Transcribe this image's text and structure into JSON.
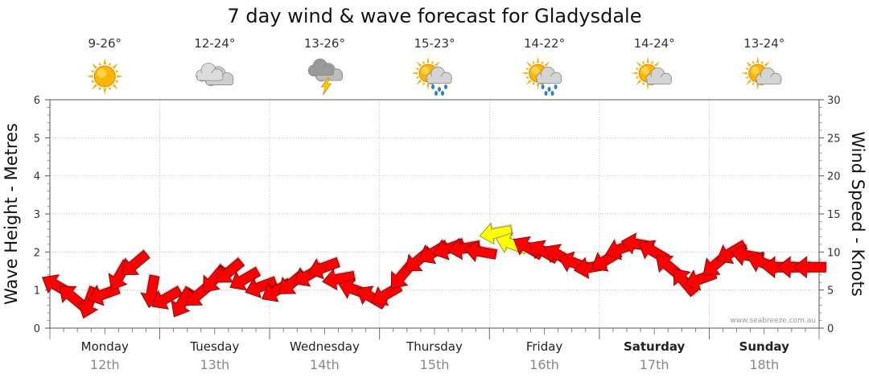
{
  "chart_data": {
    "type": "line",
    "title": "7 day wind & wave forecast for Gladysdale",
    "ylabel_left": "Wave Height - Metres",
    "ylabel_right": "Wind Speed - Knots",
    "ylim_left": [
      0,
      6
    ],
    "ylim_right": [
      0,
      30
    ],
    "yticks_left": [
      "0",
      "1",
      "2",
      "3",
      "4",
      "5",
      "6"
    ],
    "yticks_right": [
      "0",
      "5",
      "10",
      "15",
      "20",
      "25",
      "30"
    ],
    "days": [
      {
        "name": "Monday",
        "date": "12th",
        "temp": "9-26°",
        "icon": "sun-icon",
        "bold": false
      },
      {
        "name": "Tuesday",
        "date": "13th",
        "temp": "12-24°",
        "icon": "cloud-icon",
        "bold": false
      },
      {
        "name": "Wednesday",
        "date": "14th",
        "temp": "13-26°",
        "icon": "storm-cloud-icon",
        "bold": false
      },
      {
        "name": "Thursday",
        "date": "15th",
        "temp": "15-23°",
        "icon": "sun-cloud-rain-icon",
        "bold": false
      },
      {
        "name": "Friday",
        "date": "16th",
        "temp": "14-22°",
        "icon": "sun-cloud-rain-icon",
        "bold": false
      },
      {
        "name": "Saturday",
        "date": "17th",
        "temp": "14-24°",
        "icon": "sun-cloud-icon",
        "bold": true
      },
      {
        "name": "Sunday",
        "date": "18th",
        "temp": "13-24°",
        "icon": "sun-cloud-icon",
        "bold": true
      }
    ],
    "series": [
      {
        "name": "Wind Speed - Knots",
        "color": "#ff0000",
        "highlight_color": "#ffff00",
        "x_days": [
          0.0,
          0.14,
          0.29,
          0.43,
          0.57,
          0.71,
          0.86,
          1.0,
          1.14,
          1.29,
          1.43,
          1.57,
          1.71,
          1.86,
          2.0,
          2.14,
          2.29,
          2.43,
          2.57,
          2.71,
          2.86,
          3.0,
          3.14,
          3.29,
          3.43,
          3.57,
          3.71,
          3.86,
          4.0,
          4.14,
          4.29,
          4.43,
          4.57,
          4.71,
          4.86,
          5.0,
          5.14,
          5.29,
          5.43,
          5.57,
          5.71,
          5.86,
          6.0,
          6.14,
          6.29,
          6.43,
          6.57,
          6.71,
          6.86
        ],
        "values": [
          5.5,
          4.0,
          3.5,
          4.5,
          7.0,
          8.5,
          5.0,
          4.0,
          3.5,
          4.5,
          6.5,
          7.5,
          6.5,
          5.5,
          5.0,
          6.0,
          7.0,
          8.0,
          6.5,
          5.0,
          4.0,
          4.5,
          7.0,
          9.0,
          10.0,
          10.5,
          10.5,
          10.0,
          12.5,
          11.0,
          10.5,
          10.0,
          9.5,
          8.5,
          8.0,
          9.0,
          10.5,
          11.0,
          10.0,
          8.0,
          6.0,
          6.5,
          8.5,
          10.0,
          9.5,
          8.5,
          8.0,
          8.0,
          8.0
        ],
        "direction_deg": [
          300,
          310,
          200,
          250,
          210,
          230,
          190,
          240,
          210,
          230,
          220,
          230,
          240,
          250,
          240,
          230,
          240,
          250,
          260,
          290,
          300,
          240,
          220,
          230,
          240,
          250,
          260,
          280,
          260,
          290,
          300,
          300,
          300,
          290,
          260,
          240,
          250,
          280,
          300,
          310,
          320,
          250,
          230,
          240,
          280,
          290,
          270,
          270,
          270
        ],
        "highlight_indices": [
          28,
          29
        ]
      }
    ],
    "credit": "www.seabreeze.com.au"
  }
}
